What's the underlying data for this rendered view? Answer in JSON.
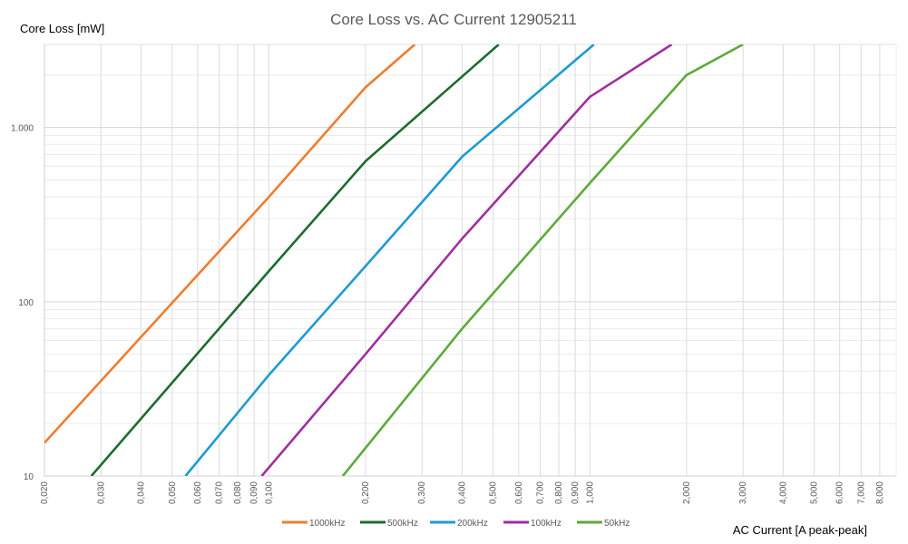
{
  "chart_data": {
    "type": "line",
    "title": "Core Loss vs. AC Current 12905211",
    "xlabel": "AC Current [A peak-peak]",
    "ylabel": "Core Loss [mW]",
    "x_scale": "log",
    "y_scale": "log",
    "xlim": [
      0.02,
      9.0
    ],
    "ylim": [
      10,
      3000
    ],
    "grid": true,
    "legend_position": "bottom",
    "x_ticks": [
      {
        "value": 0.02,
        "label": "0,020"
      },
      {
        "value": 0.03,
        "label": "0,030"
      },
      {
        "value": 0.04,
        "label": "0,040"
      },
      {
        "value": 0.05,
        "label": "0,050"
      },
      {
        "value": 0.06,
        "label": "0,060"
      },
      {
        "value": 0.07,
        "label": "0,070"
      },
      {
        "value": 0.08,
        "label": "0,080"
      },
      {
        "value": 0.09,
        "label": "0,090"
      },
      {
        "value": 0.1,
        "label": "0,100"
      },
      {
        "value": 0.2,
        "label": "0,200"
      },
      {
        "value": 0.3,
        "label": "0,300"
      },
      {
        "value": 0.4,
        "label": "0,400"
      },
      {
        "value": 0.5,
        "label": "0,500"
      },
      {
        "value": 0.6,
        "label": "0,600"
      },
      {
        "value": 0.7,
        "label": "0,700"
      },
      {
        "value": 0.8,
        "label": "0,800"
      },
      {
        "value": 0.9,
        "label": "0,900"
      },
      {
        "value": 1.0,
        "label": "1,000"
      },
      {
        "value": 2.0,
        "label": "2,000"
      },
      {
        "value": 3.0,
        "label": "3,000"
      },
      {
        "value": 4.0,
        "label": "4,000"
      },
      {
        "value": 5.0,
        "label": "5,000"
      },
      {
        "value": 6.0,
        "label": "6,000"
      },
      {
        "value": 7.0,
        "label": "7,000"
      },
      {
        "value": 8.0,
        "label": "8,000"
      }
    ],
    "y_ticks": [
      {
        "value": 10,
        "label": "10"
      },
      {
        "value": 100,
        "label": "100"
      },
      {
        "value": 1000,
        "label": "1.000"
      }
    ],
    "series": [
      {
        "name": "1000kHz",
        "color": "#ED7D31",
        "x": [
          0.02,
          0.1,
          0.2,
          0.285
        ],
        "y": [
          15.5,
          400,
          1700,
          3000
        ]
      },
      {
        "name": "500kHz",
        "color": "#1E6B2E",
        "x": [
          0.028,
          0.1,
          0.2,
          0.52
        ],
        "y": [
          10,
          150,
          640,
          3000
        ]
      },
      {
        "name": "200kHz",
        "color": "#1F9BD1",
        "x": [
          0.055,
          0.1,
          0.2,
          0.4,
          1.03
        ],
        "y": [
          10,
          38,
          160,
          680,
          3000
        ]
      },
      {
        "name": "100kHz",
        "color": "#9E2F9F",
        "x": [
          0.095,
          0.2,
          0.4,
          1.0,
          1.8
        ],
        "y": [
          10,
          50,
          230,
          1500,
          3000
        ]
      },
      {
        "name": "50kHz",
        "color": "#5DAA3A",
        "x": [
          0.17,
          0.4,
          1.0,
          2.0,
          3.0
        ],
        "y": [
          10,
          70,
          480,
          2000,
          3000
        ]
      }
    ]
  }
}
